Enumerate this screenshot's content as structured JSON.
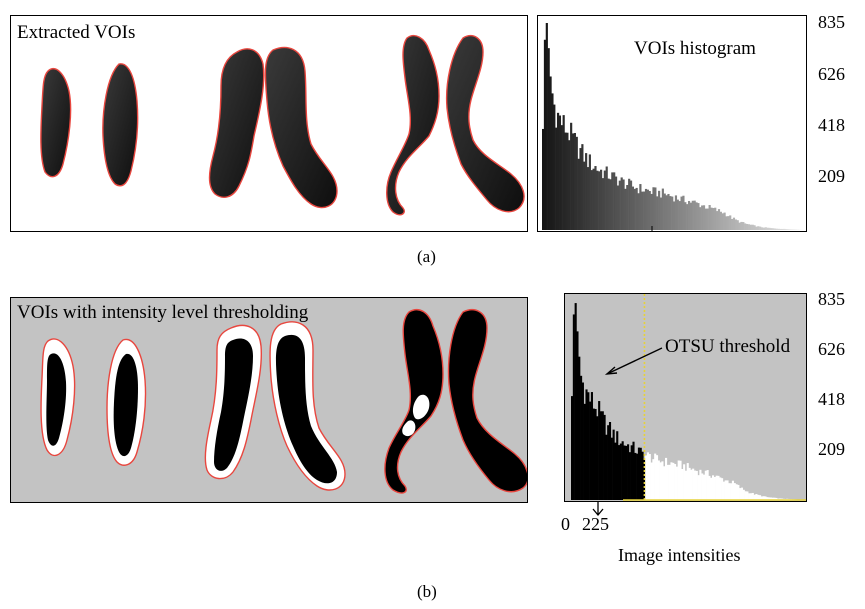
{
  "figure_a": {
    "panel_title": "Extracted VOIs",
    "caption": "(a)",
    "histogram": {
      "title": "VOIs histogram"
    }
  },
  "figure_b": {
    "panel_title": "VOIs with intensity level thresholding",
    "caption": "(b)",
    "histogram": {
      "annotation": "OTSU threshold",
      "xlabel": "Image intensities"
    }
  },
  "colors": {
    "contour": "#e8473f",
    "threshold_bg": "#c3c3c3",
    "threshold_line": "#e6d23a"
  },
  "chart_data": [
    {
      "type": "bar",
      "title": "VOIs histogram",
      "ylim": [
        0,
        835
      ],
      "yticks": [
        "209",
        "418",
        "626",
        "835"
      ],
      "envelope": {
        "x": [
          0,
          4,
          8,
          12,
          16,
          20,
          25,
          30,
          40,
          60,
          80,
          100,
          120,
          140,
          160,
          180,
          200,
          225,
          260,
          300,
          340,
          380,
          420,
          460,
          500,
          520,
          540,
          560,
          600,
          640,
          680,
          720
        ],
        "y": [
          40,
          620,
          835,
          790,
          720,
          650,
          600,
          520,
          470,
          420,
          380,
          330,
          290,
          260,
          240,
          225,
          210,
          190,
          170,
          155,
          145,
          125,
          110,
          90,
          70,
          50,
          35,
          25,
          12,
          6,
          3,
          0
        ]
      }
    },
    {
      "type": "bar",
      "ylim": [
        0,
        835
      ],
      "xlabel": "Image intensities",
      "xticks": [
        "0",
        "225"
      ],
      "yticks": [
        "209",
        "418",
        "626",
        "835"
      ],
      "threshold": 225,
      "annotation": "OTSU threshold",
      "envelope": {
        "x": [
          0,
          4,
          8,
          12,
          16,
          20,
          25,
          30,
          40,
          60,
          80,
          100,
          120,
          140,
          160,
          180,
          200,
          225,
          260,
          300,
          340,
          380,
          420,
          460,
          500,
          520,
          540,
          560,
          600,
          640,
          680,
          720
        ],
        "y": [
          40,
          620,
          835,
          790,
          720,
          650,
          600,
          520,
          470,
          420,
          380,
          330,
          290,
          260,
          240,
          225,
          210,
          190,
          170,
          155,
          145,
          125,
          110,
          90,
          70,
          50,
          35,
          25,
          12,
          6,
          3,
          0
        ]
      }
    }
  ]
}
